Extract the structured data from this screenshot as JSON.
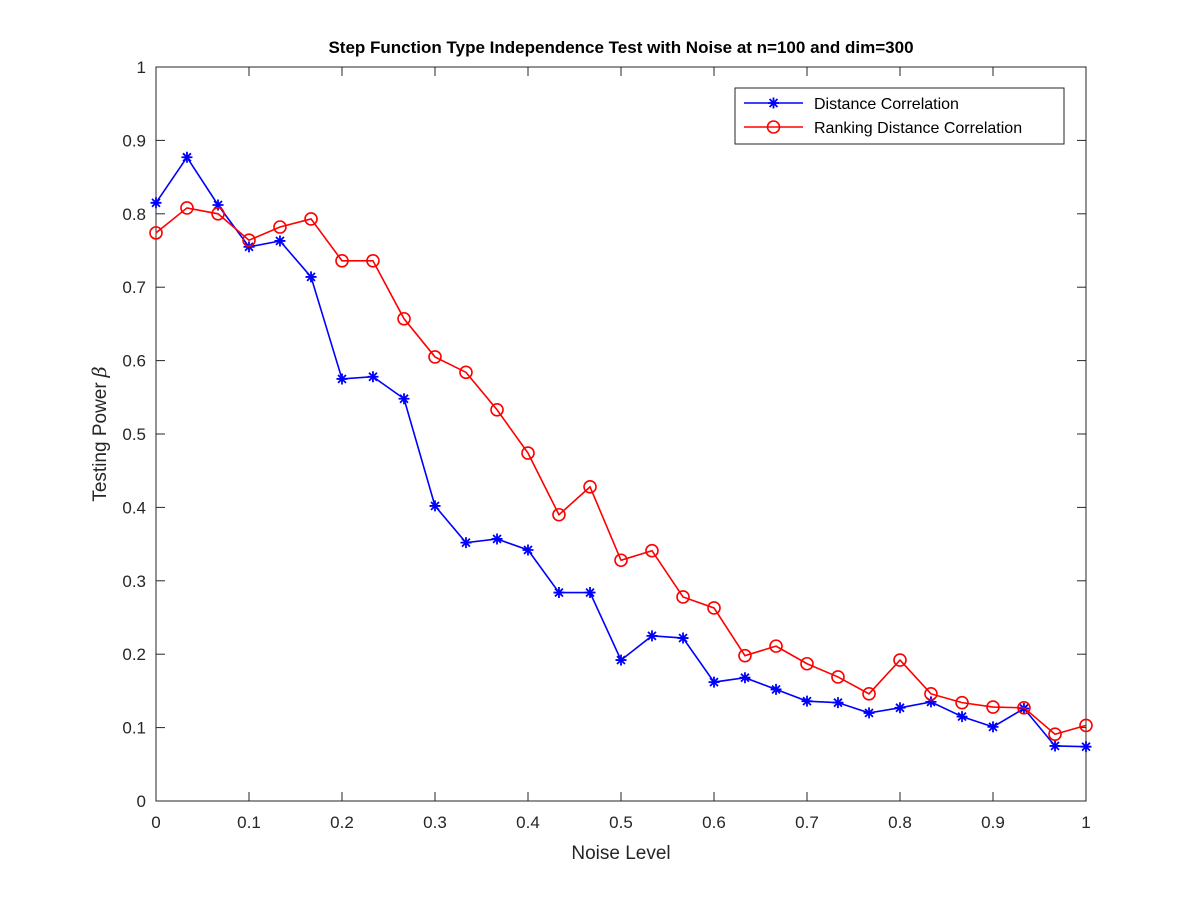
{
  "chart_data": {
    "type": "line",
    "title": "Step Function Type Independence Test with Noise at n=100 and dim=300",
    "xlabel": "Noise Level",
    "ylabel": "Testing Power",
    "ylabel_symbol": "β",
    "xlim": [
      0,
      1
    ],
    "ylim": [
      0,
      1
    ],
    "x_ticks": [
      "0",
      "0.1",
      "0.2",
      "0.3",
      "0.4",
      "0.5",
      "0.6",
      "0.7",
      "0.8",
      "0.9",
      "1"
    ],
    "y_ticks": [
      "0",
      "0.1",
      "0.2",
      "0.3",
      "0.4",
      "0.5",
      "0.6",
      "0.7",
      "0.8",
      "0.9",
      "1"
    ],
    "grid": false,
    "legend_position": "top-right",
    "x": [
      0.0,
      0.0333,
      0.0667,
      0.1,
      0.1333,
      0.1667,
      0.2,
      0.2333,
      0.2667,
      0.3,
      0.3333,
      0.3667,
      0.4,
      0.4333,
      0.4667,
      0.5,
      0.5333,
      0.5667,
      0.6,
      0.6333,
      0.6667,
      0.7,
      0.7333,
      0.7667,
      0.8,
      0.8333,
      0.8667,
      0.9,
      0.9333,
      0.9667,
      1.0
    ],
    "series": [
      {
        "name": "Distance Correlation",
        "color": "#0000ff",
        "marker": "asterisk",
        "values": [
          0.815,
          0.877,
          0.812,
          0.755,
          0.763,
          0.714,
          0.575,
          0.578,
          0.548,
          0.402,
          0.352,
          0.357,
          0.342,
          0.284,
          0.284,
          0.192,
          0.225,
          0.222,
          0.162,
          0.168,
          0.152,
          0.136,
          0.134,
          0.12,
          0.127,
          0.135,
          0.115,
          0.101,
          0.126,
          0.075,
          0.074
        ]
      },
      {
        "name": "Ranking Distance Correlation",
        "color": "#ff0000",
        "marker": "circle",
        "values": [
          0.774,
          0.808,
          0.8,
          0.764,
          0.782,
          0.793,
          0.736,
          0.736,
          0.657,
          0.605,
          0.584,
          0.533,
          0.474,
          0.39,
          0.428,
          0.328,
          0.341,
          0.278,
          0.263,
          0.198,
          0.211,
          0.187,
          0.169,
          0.146,
          0.192,
          0.146,
          0.134,
          0.128,
          0.127,
          0.091,
          0.103
        ]
      }
    ]
  }
}
